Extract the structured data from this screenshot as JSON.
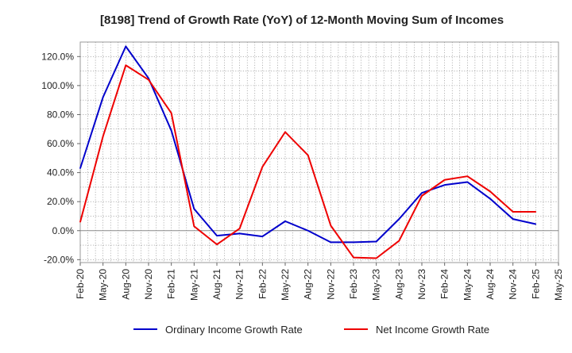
{
  "chart_data": {
    "type": "line",
    "title": "[8198]  Trend of Growth Rate (YoY) of 12-Month Moving Sum of Incomes",
    "xlabel": "",
    "ylabel": "",
    "categories": [
      "Feb-20",
      "May-20",
      "Aug-20",
      "Nov-20",
      "Feb-21",
      "May-21",
      "Aug-21",
      "Nov-21",
      "Feb-22",
      "May-22",
      "Aug-22",
      "Nov-22",
      "Feb-23",
      "May-23",
      "Aug-23",
      "Nov-23",
      "Feb-24",
      "May-24",
      "Aug-24",
      "Nov-24",
      "Feb-25",
      "May-25"
    ],
    "y_ticks": [
      "-20.0%",
      "0.0%",
      "20.0%",
      "40.0%",
      "60.0%",
      "80.0%",
      "100.0%",
      "120.0%"
    ],
    "ylim": [
      -22,
      130
    ],
    "grid": true,
    "legend_position": "bottom",
    "series": [
      {
        "name": "Ordinary Income Growth Rate",
        "color": "#0000cc",
        "values": [
          43,
          92,
          127,
          105,
          69,
          15,
          -3.5,
          -2,
          -4,
          6.5,
          0,
          -8,
          -8,
          -7.5,
          8,
          26,
          31.5,
          33.5,
          22,
          8,
          4.5,
          null
        ]
      },
      {
        "name": "Net Income Growth Rate",
        "color": "#ee0000",
        "values": [
          6,
          65,
          114,
          104,
          81,
          3,
          -9.5,
          1.5,
          44,
          68,
          52,
          3.5,
          -18.5,
          -19,
          -7,
          24,
          35,
          37.5,
          27,
          13,
          13,
          null
        ]
      }
    ]
  }
}
